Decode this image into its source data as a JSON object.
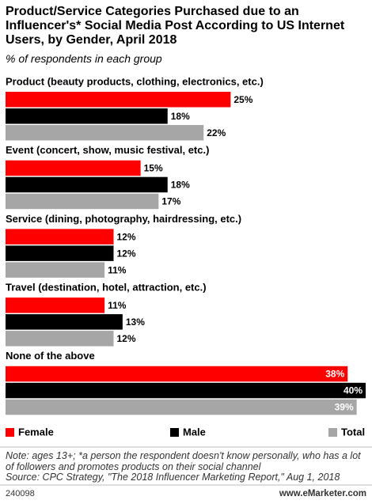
{
  "chart_data": {
    "type": "bar",
    "orientation": "horizontal",
    "title": "Product/Service Categories Purchased due to an Influencer's* Social Media Post According to US Internet Users, by Gender, April 2018",
    "subtitle": "% of respondents in each group",
    "categories": [
      "Product (beauty products, clothing, electronics, etc.)",
      "Event (concert, show, music festival, etc.)",
      "Service (dining, photography, hairdressing, etc.)",
      "Travel (destination, hotel, attraction, etc.)",
      "None of the above"
    ],
    "series": [
      {
        "name": "Female",
        "color": "#ff0000",
        "values": [
          25,
          15,
          12,
          11,
          38
        ],
        "value_labels": [
          "25%",
          "15%",
          "12%",
          "11%",
          "38%"
        ]
      },
      {
        "name": "Male",
        "color": "#000000",
        "values": [
          18,
          18,
          12,
          13,
          40
        ],
        "value_labels": [
          "18%",
          "18%",
          "12%",
          "13%",
          "40%"
        ]
      },
      {
        "name": "Total",
        "color": "#a6a6a6",
        "values": [
          22,
          17,
          11,
          12,
          39
        ],
        "value_labels": [
          "22%",
          "17%",
          "11%",
          "12%",
          "39%"
        ]
      }
    ],
    "note": "Note: ages 13+; *a person the respondent doesn't know personally, who has a lot of followers and promotes products on their social channel",
    "source": "Source: CPC Strategy, \"The 2018 Influencer Marketing Report,\" Aug 1, 2018",
    "footer_id": "240098",
    "footer_brand": "www.eMarketer.com"
  }
}
